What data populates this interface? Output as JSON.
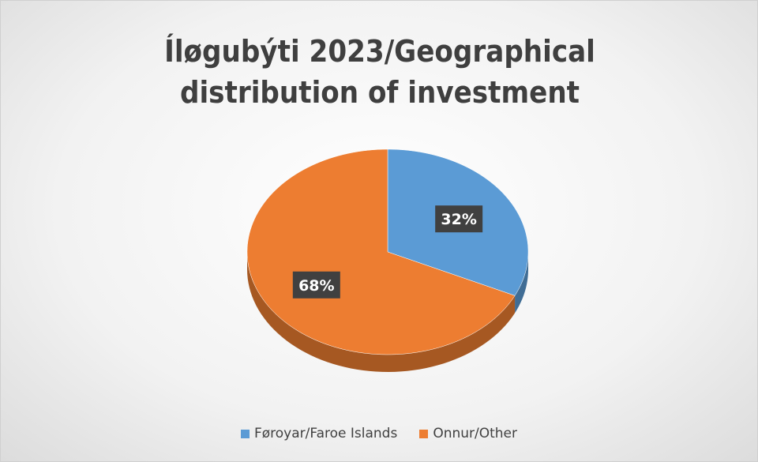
{
  "chart_data": {
    "type": "pie",
    "title": "Íløgubýti 2023/Geographical distribution of investment",
    "categories": [
      "Føroyar/Faroe Islands",
      "Onnur/Other"
    ],
    "values": [
      32,
      68
    ],
    "value_labels": [
      "32%",
      "68%"
    ],
    "colors": [
      "#5b9bd5",
      "#ed7d31"
    ]
  }
}
